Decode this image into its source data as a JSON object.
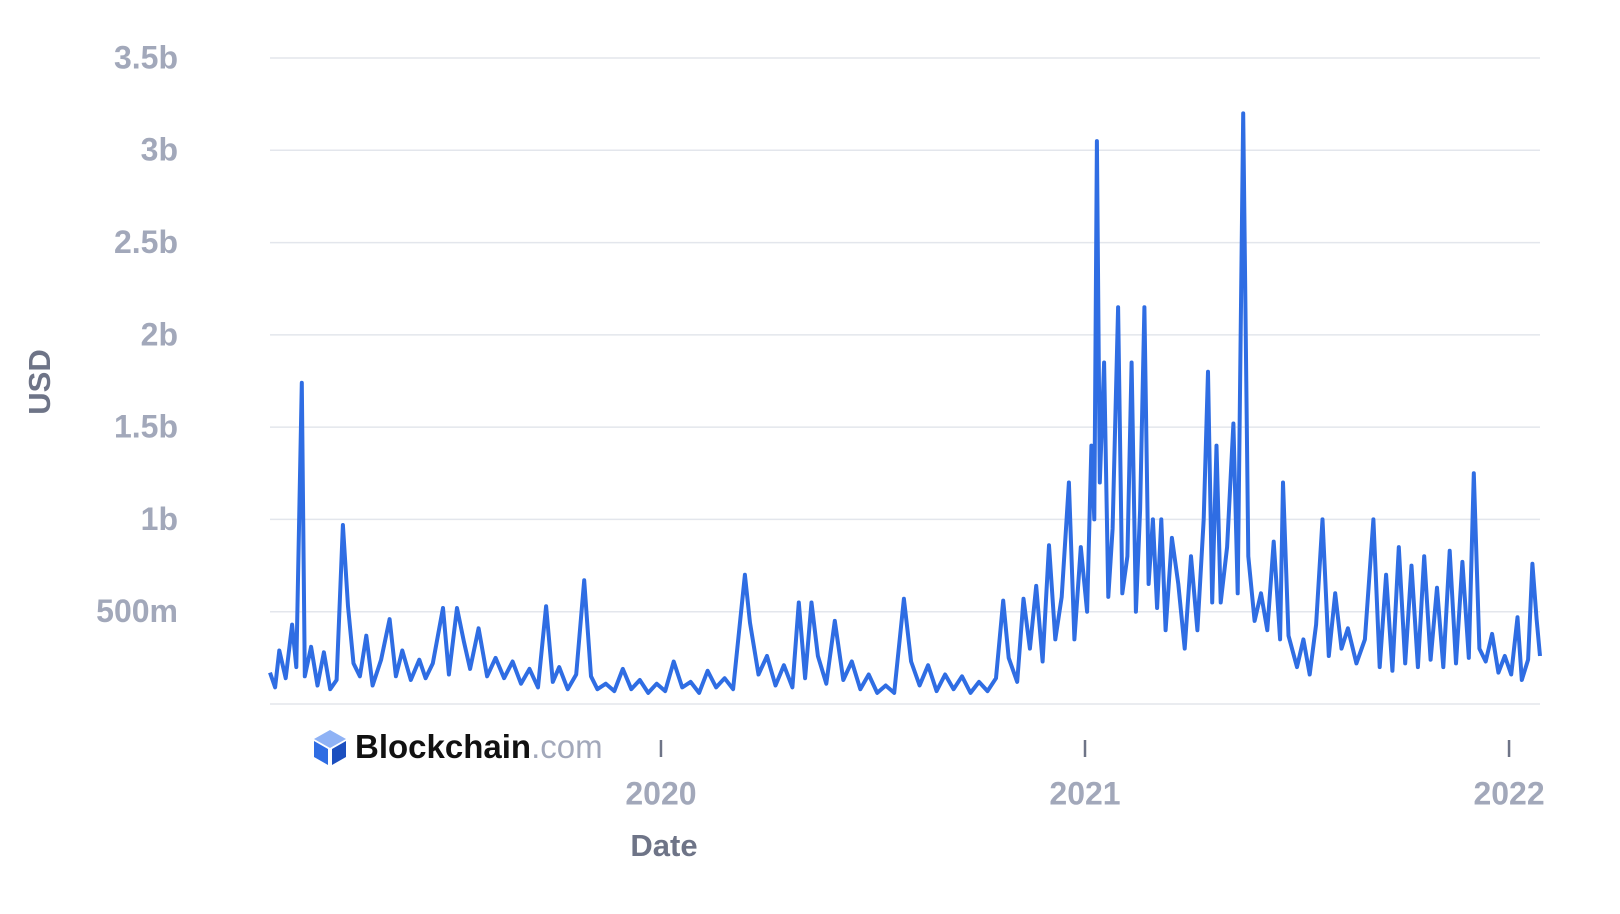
{
  "chart_data": {
    "type": "line",
    "x_label": "Date",
    "y_label": "USD",
    "watermark": {
      "brand": "Blockchain",
      "suffix": ".com"
    },
    "xlim": [
      2019.078,
      2022.073
    ],
    "xticks": [
      2020,
      2021,
      2022
    ],
    "ylim": [
      0,
      3500000000
    ],
    "yticks": [
      {
        "value": 500000000,
        "label": "500m"
      },
      {
        "value": 1000000000,
        "label": "1b"
      },
      {
        "value": 1500000000,
        "label": "1.5b"
      },
      {
        "value": 2000000000,
        "label": "2b"
      },
      {
        "value": 2500000000,
        "label": "2.5b"
      },
      {
        "value": 3000000000,
        "label": "3b"
      },
      {
        "value": 3500000000,
        "label": "3.5b"
      }
    ],
    "grid": true,
    "x": [
      2019.078,
      2019.09,
      2019.1,
      2019.115,
      2019.13,
      2019.14,
      2019.153,
      2019.16,
      2019.175,
      2019.19,
      2019.205,
      2019.22,
      2019.235,
      2019.25,
      2019.262,
      2019.275,
      2019.29,
      2019.305,
      2019.32,
      2019.34,
      2019.36,
      2019.375,
      2019.39,
      2019.41,
      2019.43,
      2019.445,
      2019.462,
      2019.486,
      2019.5,
      2019.519,
      2019.535,
      2019.55,
      2019.57,
      2019.59,
      2019.61,
      2019.63,
      2019.65,
      2019.67,
      2019.69,
      2019.71,
      2019.729,
      2019.745,
      2019.76,
      2019.78,
      2019.8,
      2019.819,
      2019.835,
      2019.85,
      2019.87,
      2019.89,
      2019.91,
      2019.93,
      2019.95,
      2019.97,
      2019.99,
      2020.01,
      2020.03,
      2020.05,
      2020.07,
      2020.09,
      2020.11,
      2020.13,
      2020.15,
      2020.17,
      2020.198,
      2020.21,
      2020.23,
      2020.25,
      2020.27,
      2020.29,
      2020.31,
      2020.325,
      2020.34,
      2020.355,
      2020.37,
      2020.39,
      2020.41,
      2020.43,
      2020.45,
      2020.47,
      2020.49,
      2020.51,
      2020.53,
      2020.55,
      2020.573,
      2020.59,
      2020.61,
      2020.63,
      2020.65,
      2020.67,
      2020.69,
      2020.71,
      2020.73,
      2020.75,
      2020.77,
      2020.79,
      2020.807,
      2020.82,
      2020.84,
      2020.855,
      2020.87,
      2020.885,
      2020.9,
      2020.915,
      2020.93,
      2020.945,
      2020.962,
      2020.975,
      2020.99,
      2021.005,
      2021.015,
      2021.022,
      2021.028,
      2021.035,
      2021.045,
      2021.055,
      2021.065,
      2021.078,
      2021.088,
      2021.1,
      2021.11,
      2021.12,
      2021.13,
      2021.14,
      2021.15,
      2021.16,
      2021.17,
      2021.18,
      2021.19,
      2021.205,
      2021.22,
      2021.235,
      2021.25,
      2021.265,
      2021.28,
      2021.29,
      2021.3,
      2021.31,
      2021.32,
      2021.335,
      2021.35,
      2021.36,
      2021.373,
      2021.385,
      2021.4,
      2021.415,
      2021.43,
      2021.445,
      2021.46,
      2021.467,
      2021.48,
      2021.5,
      2021.515,
      2021.53,
      2021.545,
      2021.56,
      2021.575,
      2021.59,
      2021.605,
      2021.62,
      2021.64,
      2021.66,
      2021.68,
      2021.695,
      2021.71,
      2021.725,
      2021.74,
      2021.755,
      2021.77,
      2021.785,
      2021.8,
      2021.815,
      2021.83,
      2021.845,
      2021.86,
      2021.875,
      2021.89,
      2021.905,
      2021.917,
      2021.93,
      2021.945,
      2021.96,
      2021.975,
      2021.99,
      2022.005,
      2022.02,
      2022.03,
      2022.045,
      2022.055,
      2022.065,
      2022.073
    ],
    "series": [
      {
        "name": "USD",
        "color": "#2f6de3",
        "values": [
          170000000.0,
          90000000.0,
          290000000.0,
          140000000.0,
          430000000.0,
          200000000.0,
          1740000000.0,
          150000000.0,
          310000000.0,
          100000000.0,
          280000000.0,
          80000000.0,
          130000000.0,
          970000000.0,
          530000000.0,
          220000000.0,
          150000000.0,
          370000000.0,
          100000000.0,
          240000000.0,
          460000000.0,
          150000000.0,
          290000000.0,
          130000000.0,
          240000000.0,
          140000000.0,
          220000000.0,
          520000000.0,
          160000000.0,
          520000000.0,
          340000000.0,
          190000000.0,
          410000000.0,
          150000000.0,
          250000000.0,
          140000000.0,
          230000000.0,
          110000000.0,
          190000000.0,
          90000000.0,
          530000000.0,
          120000000.0,
          200000000.0,
          80000000.0,
          160000000.0,
          670000000.0,
          150000000.0,
          80000000.0,
          110000000.0,
          70000000.0,
          190000000.0,
          80000000.0,
          130000000.0,
          60000000.0,
          110000000.0,
          70000000.0,
          230000000.0,
          90000000.0,
          120000000.0,
          60000000.0,
          180000000.0,
          90000000.0,
          140000000.0,
          80000000.0,
          700000000.0,
          440000000.0,
          160000000.0,
          260000000.0,
          100000000.0,
          210000000.0,
          90000000.0,
          550000000.0,
          140000000.0,
          550000000.0,
          260000000.0,
          110000000.0,
          450000000.0,
          130000000.0,
          230000000.0,
          80000000.0,
          160000000.0,
          60000000.0,
          100000000.0,
          60000000.0,
          570000000.0,
          230000000.0,
          100000000.0,
          210000000.0,
          70000000.0,
          160000000.0,
          80000000.0,
          150000000.0,
          60000000.0,
          120000000.0,
          70000000.0,
          140000000.0,
          560000000.0,
          250000000.0,
          120000000.0,
          570000000.0,
          300000000.0,
          640000000.0,
          230000000.0,
          860000000.0,
          350000000.0,
          580000000.0,
          1200000000.0,
          350000000.0,
          850000000.0,
          500000000.0,
          1400000000.0,
          1000000000.0,
          3050000000.0,
          1200000000.0,
          1850000000.0,
          580000000.0,
          950000000.0,
          2150000000.0,
          600000000.0,
          800000000.0,
          1850000000.0,
          500000000.0,
          1050000000.0,
          2150000000.0,
          650000000.0,
          1000000000.0,
          520000000.0,
          1000000000.0,
          400000000.0,
          900000000.0,
          650000000.0,
          300000000.0,
          800000000.0,
          400000000.0,
          1000000000.0,
          1800000000.0,
          550000000.0,
          1400000000.0,
          550000000.0,
          850000000.0,
          1520000000.0,
          600000000.0,
          3200000000.0,
          800000000.0,
          450000000.0,
          600000000.0,
          400000000.0,
          880000000.0,
          350000000.0,
          1200000000.0,
          370000000.0,
          200000000.0,
          350000000.0,
          160000000.0,
          430000000.0,
          1000000000.0,
          260000000.0,
          600000000.0,
          300000000.0,
          410000000.0,
          220000000.0,
          350000000.0,
          1000000000.0,
          200000000.0,
          700000000.0,
          180000000.0,
          850000000.0,
          220000000.0,
          750000000.0,
          200000000.0,
          800000000.0,
          240000000.0,
          630000000.0,
          200000000.0,
          830000000.0,
          220000000.0,
          770000000.0,
          250000000.0,
          1250000000.0,
          300000000.0,
          230000000.0,
          380000000.0,
          170000000.0,
          260000000.0,
          160000000.0,
          470000000.0,
          130000000.0,
          240000000.0,
          760000000.0,
          460000000.0,
          260000000.0
        ]
      }
    ]
  }
}
